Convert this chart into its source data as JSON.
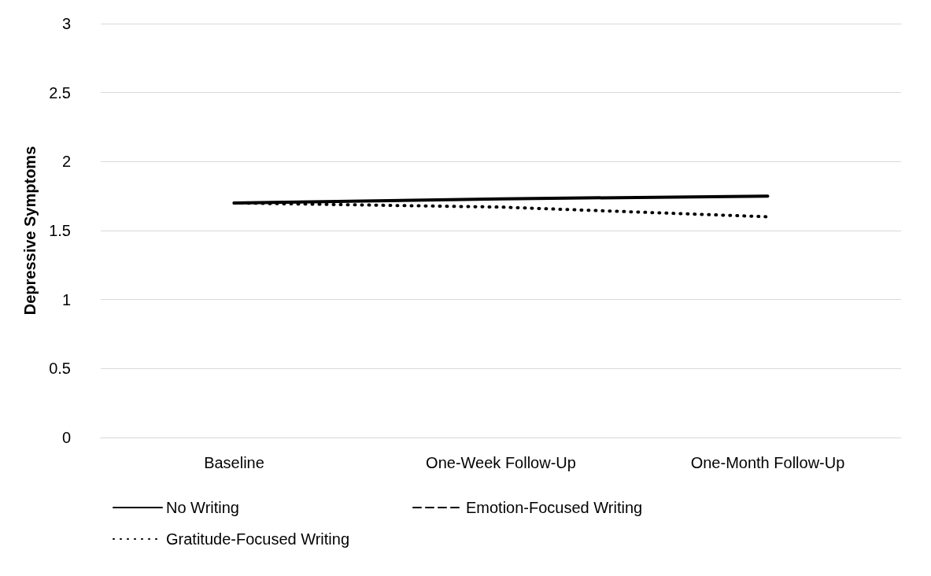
{
  "chart_data": {
    "type": "line",
    "ylabel": "Depressive Symptoms",
    "categories": [
      "Baseline",
      "One-Week Follow-Up",
      "One-Month Follow-Up"
    ],
    "series": [
      {
        "name": "No Writing",
        "color": "#000000",
        "line_style": "solid",
        "values": [
          1.7,
          1.73,
          1.75
        ]
      },
      {
        "name": "Emotion-Focused Writing",
        "color": "#000000",
        "line_style": "dashed",
        "values": [
          null,
          null,
          null
        ]
      },
      {
        "name": "Gratitude-Focused Writing",
        "color": "#000000",
        "line_style": "dotted",
        "values": [
          1.7,
          1.67,
          1.6
        ]
      }
    ],
    "ylim": [
      0,
      3
    ],
    "yticks": [
      0,
      0.5,
      1,
      1.5,
      2,
      2.5,
      3
    ],
    "grid": "y",
    "legend": "bottom",
    "marker": "none"
  }
}
